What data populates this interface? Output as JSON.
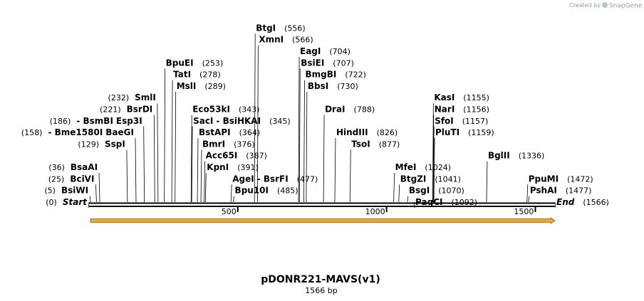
{
  "branding": {
    "created_by": "Created by",
    "brand": "SnapGene"
  },
  "title": "pDONR221-MAVS(v1)",
  "length_label": "1566 bp",
  "sequence": {
    "length": 1566,
    "ticks": [
      500,
      1000,
      1500
    ]
  },
  "feature": {
    "name": "orange-feature-arrow",
    "start": 1,
    "end": 1566,
    "color": "#f5a623"
  },
  "sites": [
    {
      "name": "Start",
      "pos": 0,
      "pos_label": "(0)",
      "italic": true,
      "row": 13,
      "prefix": "",
      "pos_side": "left"
    },
    {
      "name": "BsiWI",
      "pos": 5,
      "pos_label": "(5)",
      "row": 12,
      "prefix": "",
      "pos_side": "left"
    },
    {
      "name": "BciVI",
      "pos": 25,
      "pos_label": "(25)",
      "row": 11,
      "prefix": "",
      "pos_side": "left"
    },
    {
      "name": "BsaAI",
      "pos": 36,
      "pos_label": "(36)",
      "row": 10,
      "prefix": "",
      "pos_side": "left"
    },
    {
      "name": "SspI",
      "pos": 129,
      "pos_label": "(129)",
      "row": 8,
      "prefix": "",
      "pos_side": "left"
    },
    {
      "name": "Bme1580I",
      "pos": 158,
      "pos_label": "(158)",
      "row": 7,
      "prefix": "- ",
      "pos_side": "left"
    },
    {
      "name": "BaeGI",
      "pos": 158,
      "pos_label": "",
      "row": 7,
      "prefix": "",
      "pos_side": "none"
    },
    {
      "name": "BsmBI",
      "pos": 186,
      "pos_label": "(186)",
      "row": 6,
      "prefix": "- ",
      "pos_side": "left"
    },
    {
      "name": "Esp3I",
      "pos": 186,
      "pos_label": "",
      "row": 6,
      "prefix": "",
      "pos_side": "none"
    },
    {
      "name": "BsrDI",
      "pos": 221,
      "pos_label": "(221)",
      "row": 5,
      "prefix": "",
      "pos_side": "left"
    },
    {
      "name": "SmlI",
      "pos": 232,
      "pos_label": "(232)",
      "row": 4,
      "prefix": "",
      "pos_side": "left"
    },
    {
      "name": "BpuEI",
      "pos": 253,
      "pos_label": "(253)",
      "row": 1,
      "prefix": "",
      "pos_side": "right"
    },
    {
      "name": "TatI",
      "pos": 278,
      "pos_label": "(278)",
      "row": 2,
      "prefix": "",
      "pos_side": "right"
    },
    {
      "name": "MslI",
      "pos": 289,
      "pos_label": "(289)",
      "row": 3,
      "prefix": "",
      "pos_side": "right"
    },
    {
      "name": "Eco53kI",
      "pos": 343,
      "pos_label": "(343)",
      "row": 5,
      "prefix": "",
      "pos_side": "right"
    },
    {
      "name": "SacI",
      "pos": 345,
      "pos_label": "",
      "row": 6,
      "prefix": "",
      "pos_side": "none"
    },
    {
      "name": "BsiHKAI",
      "pos": 345,
      "pos_label": "(345)",
      "row": 6,
      "prefix": "- ",
      "pos_side": "right"
    },
    {
      "name": "BstAPI",
      "pos": 364,
      "pos_label": "(364)",
      "row": 7,
      "prefix": "",
      "pos_side": "right"
    },
    {
      "name": "BmrI",
      "pos": 376,
      "pos_label": "(376)",
      "row": 8,
      "prefix": "",
      "pos_side": "right"
    },
    {
      "name": "Acc65I",
      "pos": 387,
      "pos_label": "(387)",
      "row": 9,
      "prefix": "",
      "pos_side": "right"
    },
    {
      "name": "KpnI",
      "pos": 391,
      "pos_label": "(391)",
      "row": 10,
      "prefix": "",
      "pos_side": "right"
    },
    {
      "name": "AgeI",
      "pos": 477,
      "pos_label": "",
      "row": 11,
      "prefix": "",
      "pos_side": "none"
    },
    {
      "name": "BsrFI",
      "pos": 477,
      "pos_label": "(477)",
      "row": 11,
      "prefix": "- ",
      "pos_side": "right"
    },
    {
      "name": "Bpu10I",
      "pos": 485,
      "pos_label": "(485)",
      "row": 12,
      "prefix": "",
      "pos_side": "right"
    },
    {
      "name": "BtgI",
      "pos": 556,
      "pos_label": "(556)",
      "row": -2,
      "prefix": "",
      "pos_side": "right"
    },
    {
      "name": "XmnI",
      "pos": 566,
      "pos_label": "(566)",
      "row": -1,
      "prefix": "",
      "pos_side": "right"
    },
    {
      "name": "EagI",
      "pos": 704,
      "pos_label": "(704)",
      "row": 0,
      "prefix": "",
      "pos_side": "right"
    },
    {
      "name": "BsiEI",
      "pos": 707,
      "pos_label": "(707)",
      "row": 1,
      "prefix": "",
      "pos_side": "right"
    },
    {
      "name": "BmgBI",
      "pos": 722,
      "pos_label": "(722)",
      "row": 2,
      "prefix": "",
      "pos_side": "right"
    },
    {
      "name": "BbsI",
      "pos": 730,
      "pos_label": "(730)",
      "row": 3,
      "prefix": "",
      "pos_side": "right"
    },
    {
      "name": "DraI",
      "pos": 788,
      "pos_label": "(788)",
      "row": 5,
      "prefix": "",
      "pos_side": "right"
    },
    {
      "name": "HindIII",
      "pos": 826,
      "pos_label": "(826)",
      "row": 7,
      "prefix": "",
      "pos_side": "right"
    },
    {
      "name": "TsoI",
      "pos": 877,
      "pos_label": "(877)",
      "row": 8,
      "prefix": "",
      "pos_side": "right"
    },
    {
      "name": "MfeI",
      "pos": 1024,
      "pos_label": "(1024)",
      "row": 10,
      "prefix": "",
      "pos_side": "right"
    },
    {
      "name": "BtgZI",
      "pos": 1041,
      "pos_label": "(1041)",
      "row": 11,
      "prefix": "",
      "pos_side": "right"
    },
    {
      "name": "BsgI",
      "pos": 1070,
      "pos_label": "(1070)",
      "row": 12,
      "prefix": "",
      "pos_side": "right"
    },
    {
      "name": "PaqCI",
      "pos": 1092,
      "pos_label": "(1092)",
      "row": 13,
      "prefix": "",
      "pos_side": "right"
    },
    {
      "name": "KasI",
      "pos": 1155,
      "pos_label": "(1155)",
      "row": 4,
      "prefix": "",
      "pos_side": "right"
    },
    {
      "name": "NarI",
      "pos": 1156,
      "pos_label": "(1156)",
      "row": 5,
      "prefix": "",
      "pos_side": "right"
    },
    {
      "name": "SfoI",
      "pos": 1157,
      "pos_label": "(1157)",
      "row": 6,
      "prefix": "",
      "pos_side": "right"
    },
    {
      "name": "PluTI",
      "pos": 1159,
      "pos_label": "(1159)",
      "row": 7,
      "prefix": "",
      "pos_side": "right"
    },
    {
      "name": "BglII",
      "pos": 1336,
      "pos_label": "(1336)",
      "row": 9,
      "prefix": "",
      "pos_side": "right"
    },
    {
      "name": "PpuMI",
      "pos": 1472,
      "pos_label": "(1472)",
      "row": 11,
      "prefix": "",
      "pos_side": "right"
    },
    {
      "name": "PshAI",
      "pos": 1477,
      "pos_label": "(1477)",
      "row": 12,
      "prefix": "",
      "pos_side": "right"
    },
    {
      "name": "End",
      "pos": 1566,
      "pos_label": "(1566)",
      "italic": true,
      "row": 13,
      "prefix": "",
      "pos_side": "right"
    }
  ]
}
